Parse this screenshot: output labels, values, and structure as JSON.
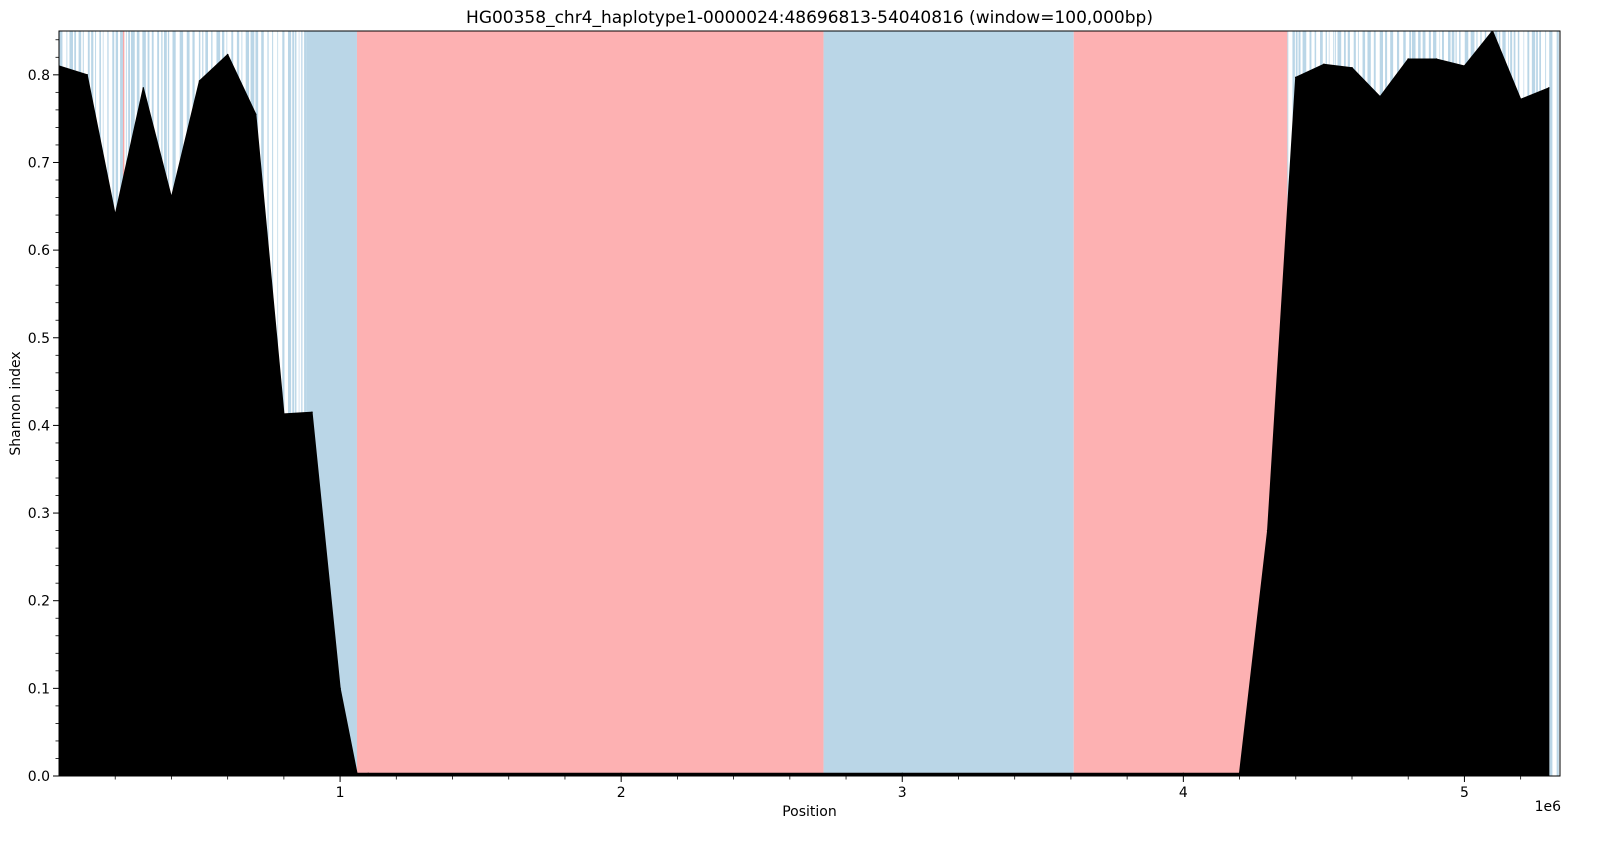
{
  "chart_data": {
    "type": "area",
    "title": "HG00358_chr4_haplotype1-0000024:48696813-54040816 (window=100,000bp)",
    "xlabel": "Position",
    "ylabel": "Shannon index",
    "x_offset_label": "1e6",
    "xlim": [
      0,
      5340000
    ],
    "ylim": [
      0,
      0.85
    ],
    "x_ticks": [
      1000000,
      2000000,
      3000000,
      4000000,
      5000000
    ],
    "x_tick_labels": [
      "1",
      "2",
      "3",
      "4",
      "5"
    ],
    "y_ticks": [
      0.0,
      0.1,
      0.2,
      0.3,
      0.4,
      0.5,
      0.6,
      0.7,
      0.8
    ],
    "y_tick_labels": [
      "0.0",
      "0.1",
      "0.2",
      "0.3",
      "0.4",
      "0.5",
      "0.6",
      "0.7",
      "0.8"
    ],
    "series": [
      {
        "color": "#000000",
        "x": [
          0,
          100000,
          200000,
          300000,
          400000,
          500000,
          600000,
          700000,
          800000,
          900000,
          1000000,
          1060000,
          1100000,
          2000000,
          3000000,
          4000000,
          4200000,
          4300000,
          4400000,
          4500000,
          4600000,
          4700000,
          4800000,
          4900000,
          5000000,
          5100000,
          5200000,
          5300000
        ],
        "y": [
          0.81,
          0.8,
          0.64,
          0.785,
          0.66,
          0.793,
          0.823,
          0.755,
          0.413,
          0.415,
          0.1,
          0.003,
          0.003,
          0.003,
          0.003,
          0.003,
          0.003,
          0.28,
          0.797,
          0.812,
          0.808,
          0.775,
          0.818,
          0.818,
          0.81,
          0.85,
          0.772,
          0.785
        ]
      }
    ],
    "background_regions": [
      {
        "start": 880000,
        "end": 1060000,
        "color": "#bad6e7"
      },
      {
        "start": 1060000,
        "end": 2720000,
        "color": "#fdb1b2"
      },
      {
        "start": 2720000,
        "end": 3610000,
        "color": "#bad6e7"
      },
      {
        "start": 3610000,
        "end": 4370000,
        "color": "#fdb1b2"
      }
    ],
    "stripe_zones": [
      {
        "start": 0,
        "end": 880000,
        "color": "#bad6e7"
      },
      {
        "start": 4370000,
        "end": 5340000,
        "color": "#bad6e7"
      }
    ],
    "accent_lines": [
      {
        "x": 230000,
        "color": "#f8a8a8"
      }
    ],
    "grid": false
  }
}
